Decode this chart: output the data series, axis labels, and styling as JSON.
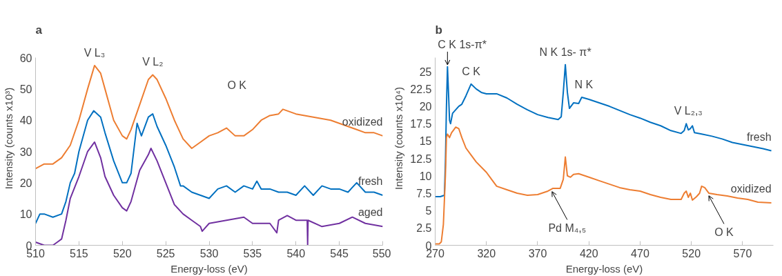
{
  "chart_data": [
    {
      "type": "line",
      "title": "a",
      "xlabel": "Energy-loss (eV)",
      "ylabel": "Intensity (counts x10³)",
      "xlim": [
        510,
        550
      ],
      "ylim": [
        0,
        60
      ],
      "xticks": [
        510,
        515,
        520,
        525,
        530,
        535,
        540,
        545,
        550
      ],
      "yticks": [
        0,
        10,
        20,
        30,
        40,
        50,
        60
      ],
      "grid": false,
      "series": [
        {
          "name": "oxidized",
          "color": "#ed7d31",
          "x": [
            510,
            511,
            512,
            513,
            514,
            515,
            516,
            516.8,
            517.5,
            518,
            519,
            520,
            520.5,
            521,
            522,
            523,
            523.5,
            524,
            525,
            526,
            527,
            528,
            529,
            530,
            531,
            532,
            533,
            534,
            535,
            536,
            537,
            538,
            538.5,
            540,
            542,
            544,
            545,
            546,
            547,
            548,
            549,
            550
          ],
          "values": [
            24.5,
            26,
            26,
            28,
            32,
            40,
            50,
            57.5,
            55,
            50,
            40,
            35,
            34,
            37,
            45,
            53,
            54.5,
            53,
            47,
            40,
            34,
            31,
            33,
            35,
            36,
            37.5,
            35,
            35,
            37,
            40,
            41.5,
            42,
            43.5,
            42,
            41,
            40,
            39,
            38,
            37,
            36,
            36,
            35
          ]
        },
        {
          "name": "fresh",
          "color": "#0070c0",
          "x": [
            510,
            510.5,
            511,
            512,
            513,
            513.5,
            514,
            514.5,
            515,
            516,
            516.7,
            517.5,
            518,
            519,
            520,
            520.5,
            521,
            521.7,
            522.2,
            523,
            523.5,
            524,
            525,
            526,
            526.7,
            527,
            528,
            529,
            530,
            531,
            532,
            533,
            534,
            535,
            535.5,
            536,
            537,
            538,
            539,
            540,
            541,
            542,
            543,
            544,
            545,
            546,
            547,
            548,
            549,
            550
          ],
          "values": [
            7,
            10,
            10,
            9,
            10,
            14,
            20,
            23,
            30,
            40,
            43,
            41,
            36,
            27,
            20,
            20,
            23,
            39,
            35,
            41,
            42,
            38,
            32,
            25,
            19,
            19,
            17,
            16,
            15,
            18,
            19,
            17,
            19,
            18,
            20.5,
            18,
            18,
            17,
            17,
            16,
            19,
            16,
            19,
            18,
            18,
            17,
            20,
            17,
            17,
            16
          ]
        },
        {
          "name": "aged",
          "color": "#7030a0",
          "x": [
            510,
            511,
            512,
            512.5,
            513,
            513.5,
            514,
            515,
            516,
            516.8,
            517.5,
            518,
            519,
            520,
            520.5,
            521,
            522,
            523,
            523.3,
            524,
            525,
            526,
            527,
            528,
            529,
            529.2,
            530,
            532,
            534,
            535,
            537,
            537.8,
            538,
            539,
            540,
            541.3,
            541.35,
            541.4,
            543,
            545,
            546.5,
            548,
            550
          ],
          "values": [
            1,
            0,
            0,
            1,
            2,
            8,
            15,
            22,
            30,
            33,
            28,
            22,
            16,
            12,
            11,
            14,
            24,
            29,
            31,
            27,
            20,
            13,
            10,
            8,
            6,
            4.5,
            7,
            8,
            9,
            7,
            7,
            4,
            8,
            9.5,
            8,
            8,
            0,
            8,
            6,
            7,
            9,
            7,
            6
          ]
        }
      ],
      "annotations": [
        {
          "text": "V L₃",
          "x": 516.8,
          "y": 57.5
        },
        {
          "text": "V L₂",
          "x": 523.5,
          "y": 54.5
        },
        "O K"
      ]
    },
    {
      "type": "line",
      "title": "b",
      "xlabel": "Energy-loss (eV)",
      "ylabel": "Intensity (counts x10⁴)",
      "xlim": [
        270,
        600
      ],
      "ylim": [
        0,
        27
      ],
      "xticks": [
        270,
        320,
        370,
        420,
        470,
        520,
        570
      ],
      "yticks": [
        0,
        2.5,
        5,
        7.5,
        10,
        12.5,
        15,
        17.5,
        20,
        22.5,
        25
      ],
      "grid": false,
      "series": [
        {
          "name": "fresh",
          "color": "#0070c0",
          "x": [
            270,
            275,
            279,
            280,
            281,
            282,
            283,
            284,
            285,
            287,
            290,
            293,
            296,
            300,
            305,
            310,
            315,
            320,
            330,
            340,
            350,
            360,
            370,
            380,
            390,
            393,
            395,
            397,
            399,
            401,
            405,
            410,
            413,
            420,
            430,
            440,
            450,
            460,
            470,
            480,
            490,
            500,
            510,
            513,
            515,
            517,
            519,
            521,
            523,
            530,
            540,
            550,
            560,
            570,
            580,
            590,
            598
          ],
          "values": [
            7,
            7,
            7.2,
            12,
            20,
            25.7,
            22,
            18,
            17.5,
            19,
            19.5,
            20,
            20.3,
            21.5,
            23.2,
            22.5,
            22,
            21.8,
            21.8,
            21.2,
            20.3,
            19.5,
            18.8,
            18.4,
            18.1,
            18.5,
            22,
            26,
            22,
            19.7,
            20.5,
            20.4,
            21.3,
            21,
            20.5,
            20,
            19.4,
            18.8,
            18.3,
            17.7,
            17.2,
            16.5,
            16.1,
            16.5,
            17.5,
            16.6,
            16.8,
            17.2,
            16.2,
            16,
            15.7,
            15.3,
            14.8,
            14.5,
            14.2,
            13.9,
            13.6
          ]
        },
        {
          "name": "oxidized",
          "color": "#ed7d31",
          "x": [
            270,
            274,
            276,
            278,
            280,
            281,
            282,
            284,
            286,
            290,
            293,
            296,
            300,
            305,
            310,
            320,
            325,
            330,
            340,
            350,
            360,
            370,
            380,
            385,
            392,
            395,
            397,
            399,
            402,
            405,
            410,
            420,
            430,
            440,
            450,
            460,
            470,
            480,
            490,
            500,
            510,
            513,
            515,
            517,
            519,
            521,
            525,
            528,
            530,
            533,
            537,
            545,
            555,
            565,
            575,
            585,
            598
          ],
          "values": [
            0.2,
            0.2,
            0.5,
            3,
            10,
            15.5,
            16,
            15.5,
            16.2,
            17,
            16.8,
            15.5,
            14,
            13,
            12,
            10.5,
            9.5,
            8.5,
            8,
            7.5,
            7.2,
            7.3,
            7.8,
            8.2,
            8.2,
            9.5,
            12.7,
            10,
            9.8,
            10.2,
            10.3,
            9.8,
            9.3,
            8.8,
            8.3,
            8,
            7.8,
            7.3,
            6.9,
            6.6,
            6.6,
            7.5,
            7.8,
            6.9,
            7.5,
            6.5,
            7,
            7.5,
            8.5,
            8.3,
            7.5,
            7.3,
            7.1,
            6.8,
            6.6,
            6.2,
            6.1
          ]
        }
      ],
      "annotations": [
        {
          "text": "C K 1s-π*",
          "x": 282,
          "y": 25.7
        },
        {
          "text": "C K",
          "x": 305,
          "y": 23.2
        },
        {
          "text": "N K 1s- π*",
          "x": 397,
          "y": 26
        },
        {
          "text": "N K",
          "x": 415,
          "y": 21.3
        },
        {
          "text": "V L₂,₃",
          "x": 517,
          "y": 17.5
        },
        {
          "text": "Pd M₄,₅",
          "x": 384,
          "y": 8
        },
        {
          "text": "O K",
          "x": 537,
          "y": 7.4
        }
      ]
    }
  ]
}
